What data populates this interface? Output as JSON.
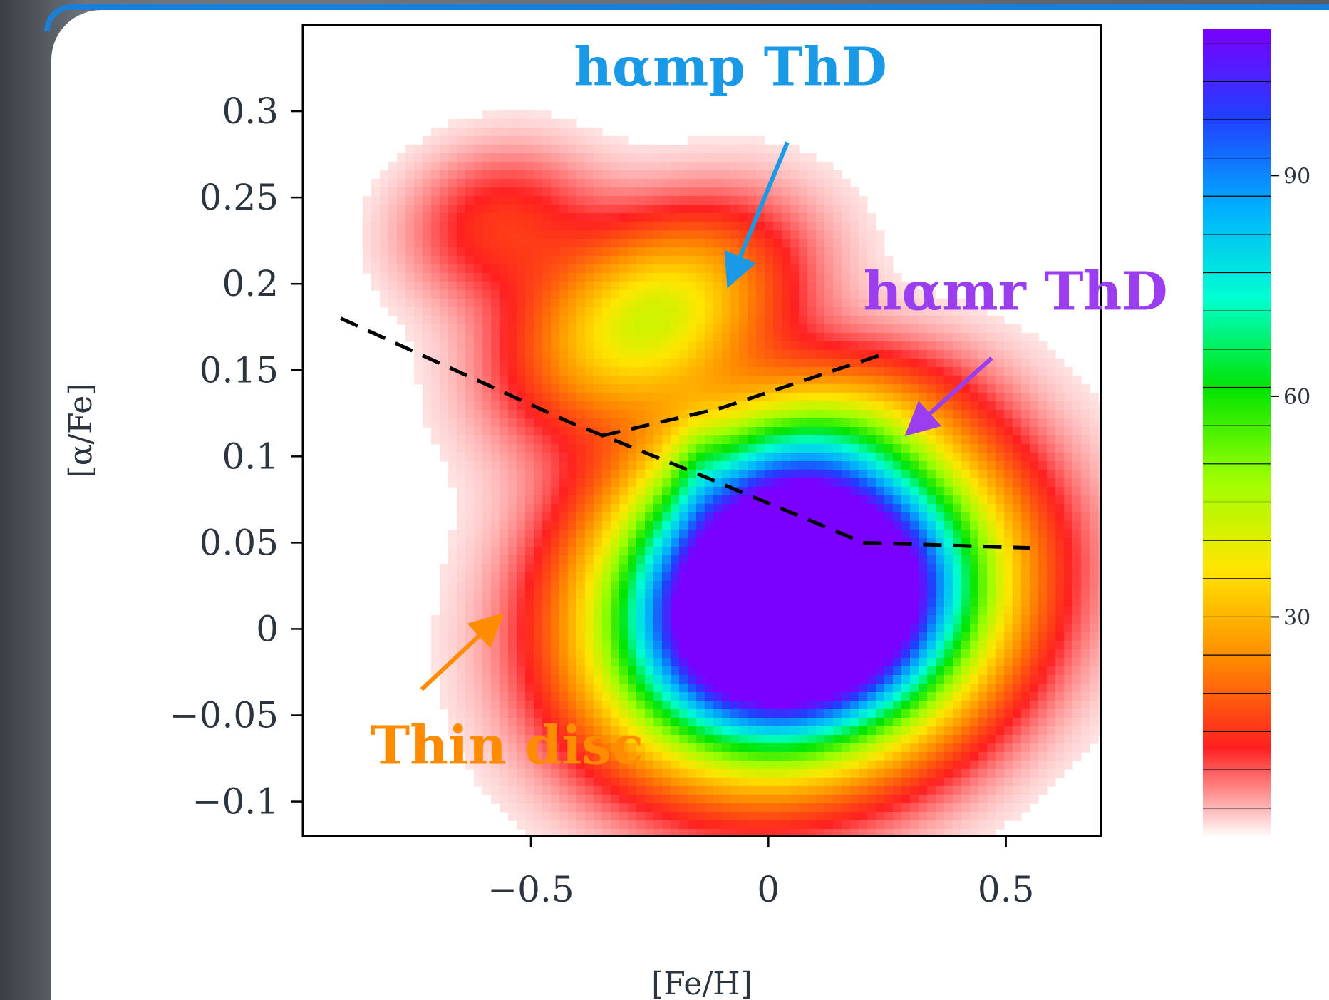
{
  "chart_data": {
    "type": "heatmap",
    "title": "",
    "xlabel": "[Fe/H]",
    "ylabel": "[α/Fe]",
    "xlim": [
      -0.98,
      0.7
    ],
    "ylim": [
      -0.12,
      0.35
    ],
    "x_ticks": [
      {
        "value": -0.5,
        "label": "−0.5"
      },
      {
        "value": 0,
        "label": "0"
      },
      {
        "value": 0.5,
        "label": "0.5"
      }
    ],
    "y_ticks": [
      {
        "value": 0.3,
        "label": "0.3"
      },
      {
        "value": 0.25,
        "label": "0.25"
      },
      {
        "value": 0.2,
        "label": "0.2"
      },
      {
        "value": 0.15,
        "label": "0.15"
      },
      {
        "value": 0.1,
        "label": "0.1"
      },
      {
        "value": 0.05,
        "label": "0.05"
      },
      {
        "value": 0,
        "label": "0"
      },
      {
        "value": -0.05,
        "label": "−0.05"
      },
      {
        "value": -0.1,
        "label": "−0.1"
      }
    ],
    "colorbar": {
      "range": [
        0,
        110
      ],
      "ticks": [
        {
          "value": 90,
          "label": "90"
        },
        {
          "value": 60,
          "label": "60"
        },
        {
          "value": 30,
          "label": "30"
        }
      ],
      "colormap": [
        "#ffffff",
        "#ff2020",
        "#ff8c00",
        "#ffe600",
        "#9bff00",
        "#00e400",
        "#00ffd0",
        "#00b0ff",
        "#2040ff",
        "#7a00ff"
      ]
    },
    "density_components": [
      {
        "center": [
          -0.25,
          0.18
        ],
        "amplitude": 42,
        "sigma_major": 0.2,
        "sigma_minor": 0.035,
        "angle_deg": -28
      },
      {
        "center": [
          -0.57,
          0.235
        ],
        "amplitude": 14,
        "sigma_major": 0.14,
        "sigma_minor": 0.03,
        "angle_deg": -15
      },
      {
        "center": [
          0.05,
          0.1
        ],
        "amplitude": 26,
        "sigma_major": 0.2,
        "sigma_minor": 0.03,
        "angle_deg": -20
      },
      {
        "center": [
          -0.15,
          0.095
        ],
        "amplitude": 8,
        "sigma_major": 0.04,
        "sigma_minor": 0.02,
        "angle_deg": 0
      },
      {
        "center": [
          0.06,
          0.015
        ],
        "amplitude": 190,
        "sigma_major": 0.25,
        "sigma_minor": 0.055,
        "angle_deg": -18
      }
    ],
    "dashed_lines": [
      {
        "name": "upper-divider",
        "points": [
          [
            -0.9,
            0.18
          ],
          [
            -0.42,
            0.12
          ],
          [
            -0.15,
            0.09
          ],
          [
            0.2,
            0.05
          ],
          [
            0.55,
            0.047
          ]
        ]
      },
      {
        "name": "lower-divider",
        "points": [
          [
            -0.35,
            0.112
          ],
          [
            -0.1,
            0.128
          ],
          [
            0.25,
            0.16
          ]
        ]
      }
    ],
    "annotations": [
      {
        "text": "hαmp ThD",
        "color": "#1a9ae6",
        "pos": [
          -0.08,
          0.315
        ],
        "anchor": "middle",
        "arrow_from": [
          0.04,
          0.282
        ],
        "arrow_to": [
          -0.08,
          0.202
        ]
      },
      {
        "text": "hαmr ThD",
        "color": "#9b3ef0",
        "pos": [
          0.2,
          0.185
        ],
        "anchor": "start",
        "arrow_from": [
          0.47,
          0.157
        ],
        "arrow_to": [
          0.3,
          0.115
        ]
      },
      {
        "text": "Thin disc",
        "color": "#ff8c00",
        "pos": [
          -0.55,
          -0.078
        ],
        "anchor": "middle",
        "arrow_from": [
          -0.73,
          -0.035
        ],
        "arrow_to": [
          -0.57,
          0.006
        ]
      }
    ]
  }
}
